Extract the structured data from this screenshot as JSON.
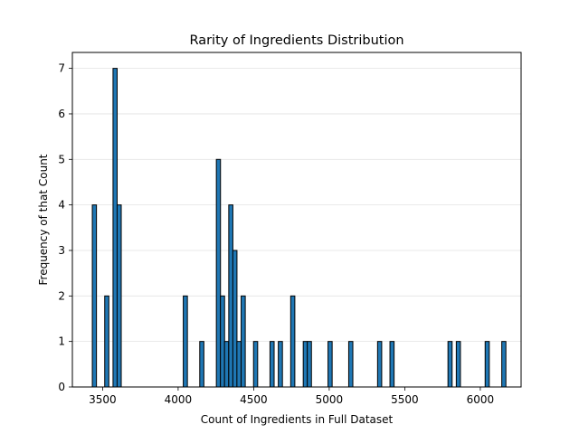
{
  "chart_data": {
    "type": "bar",
    "title": "Rarity of Ingredients Distribution",
    "xlabel": "Count of Ingredients in Full Dataset",
    "ylabel": "Frequency of that Count",
    "xlim": [
      3300,
      6270
    ],
    "ylim": [
      0,
      7.35
    ],
    "bin_width": 27.4,
    "xticks": [
      3500,
      4000,
      4500,
      5000,
      5500,
      6000
    ],
    "yticks": [
      0,
      1,
      2,
      3,
      4,
      5,
      6,
      7
    ],
    "grid": {
      "y": true,
      "x": false
    },
    "bar_color": "#1f77b4",
    "edge_color": "#000000",
    "bars": [
      {
        "x": 3432,
        "value": 4
      },
      {
        "x": 3514,
        "value": 2
      },
      {
        "x": 3569,
        "value": 7
      },
      {
        "x": 3596,
        "value": 4
      },
      {
        "x": 4034,
        "value": 2
      },
      {
        "x": 4143,
        "value": 1
      },
      {
        "x": 4253,
        "value": 5
      },
      {
        "x": 4280,
        "value": 2
      },
      {
        "x": 4307,
        "value": 1
      },
      {
        "x": 4335,
        "value": 4
      },
      {
        "x": 4362,
        "value": 3
      },
      {
        "x": 4389,
        "value": 1
      },
      {
        "x": 4417,
        "value": 2
      },
      {
        "x": 4499,
        "value": 1
      },
      {
        "x": 4608,
        "value": 1
      },
      {
        "x": 4663,
        "value": 1
      },
      {
        "x": 4745,
        "value": 2
      },
      {
        "x": 4828,
        "value": 1
      },
      {
        "x": 4855,
        "value": 1
      },
      {
        "x": 4992,
        "value": 1
      },
      {
        "x": 5129,
        "value": 1
      },
      {
        "x": 5320,
        "value": 1
      },
      {
        "x": 5402,
        "value": 1
      },
      {
        "x": 5786,
        "value": 1
      },
      {
        "x": 5841,
        "value": 1
      },
      {
        "x": 6032,
        "value": 1
      },
      {
        "x": 6142,
        "value": 1
      }
    ]
  }
}
